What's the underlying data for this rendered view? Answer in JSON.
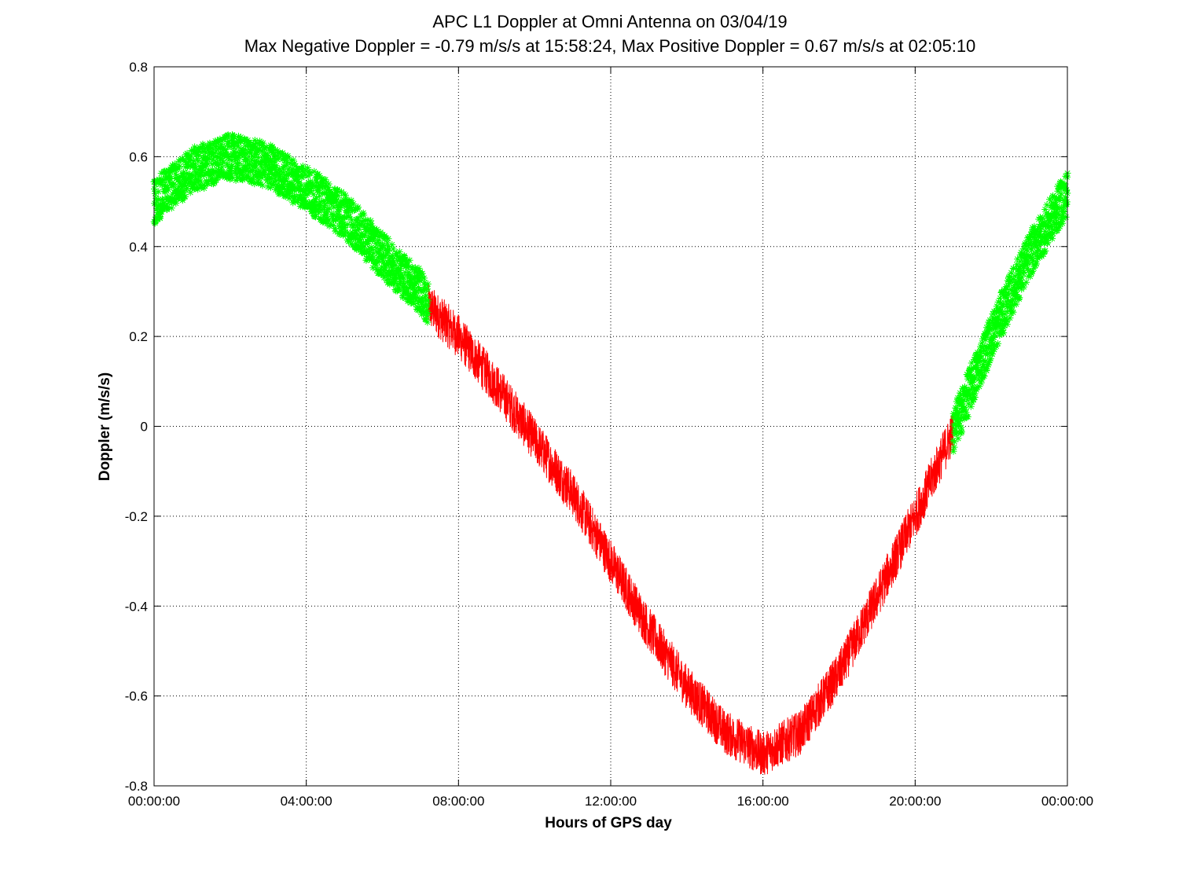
{
  "chart_data": {
    "type": "line",
    "title": "APC  L1 Doppler at Omni Antenna on 03/04/19",
    "subtitle": "Max Negative Doppler = -0.79 m/s/s  at 15:58:24,   Max Positive Doppler = 0.67 m/s/s  at 02:05:10",
    "xlabel": "Hours of GPS day",
    "ylabel": "Doppler (m/s/s)",
    "xlim": [
      0,
      24
    ],
    "ylim": [
      -0.8,
      0.8
    ],
    "x_ticks": [
      0,
      4,
      8,
      12,
      16,
      20,
      24
    ],
    "x_tick_labels": [
      "00:00:00",
      "04:00:00",
      "08:00:00",
      "12:00:00",
      "16:00:00",
      "20:00:00",
      "00:00:00"
    ],
    "y_ticks": [
      -0.8,
      -0.6,
      -0.4,
      -0.2,
      0,
      0.2,
      0.4,
      0.6,
      0.8
    ],
    "y_tick_labels": [
      "-0.8",
      "-0.6",
      "-0.4",
      "-0.2",
      "0",
      "0.2",
      "0.4",
      "0.6",
      "0.8"
    ],
    "grid": true,
    "series": [
      {
        "color": "#ff0000",
        "marker": "line",
        "noise_amplitude": 0.05,
        "x": [
          0,
          1,
          2,
          3,
          4,
          5,
          6,
          7,
          7.2,
          8,
          9,
          10,
          11,
          12,
          13,
          14,
          15,
          16,
          17,
          18,
          19,
          20,
          21,
          22,
          23,
          24
        ],
        "y": [
          0.5,
          0.57,
          0.6,
          0.58,
          0.53,
          0.47,
          0.38,
          0.3,
          0.27,
          0.2,
          0.09,
          -0.03,
          -0.15,
          -0.3,
          -0.45,
          -0.58,
          -0.68,
          -0.73,
          -0.68,
          -0.55,
          -0.38,
          -0.2,
          -0.01,
          0.2,
          0.38,
          0.52
        ]
      },
      {
        "color": "#00ff00",
        "marker": "asterisk",
        "noise_amplitude": 0.05,
        "x": [
          0,
          1,
          2,
          3,
          4,
          5,
          6,
          7,
          7.2,
          21,
          22,
          23,
          24
        ],
        "y": [
          0.5,
          0.57,
          0.6,
          0.58,
          0.53,
          0.47,
          0.38,
          0.3,
          0.27,
          -0.01,
          0.2,
          0.38,
          0.52
        ]
      }
    ],
    "visible_ranges": [
      {
        "series": 0,
        "from": 7.2,
        "to": 21
      },
      {
        "series": 1,
        "from": 0,
        "to": 7.2
      },
      {
        "series": 1,
        "from": 21,
        "to": 24
      }
    ]
  }
}
